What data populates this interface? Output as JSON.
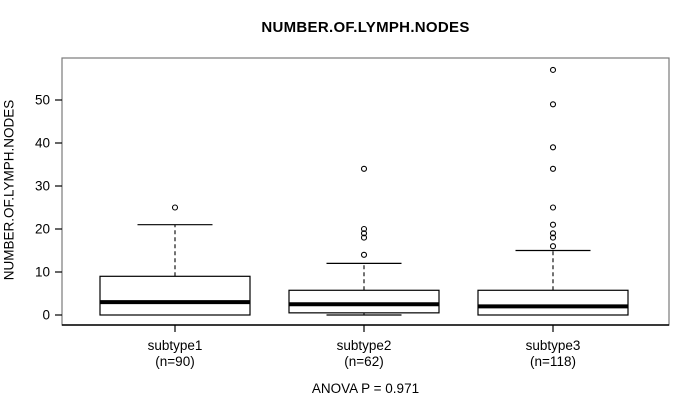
{
  "title": "NUMBER.OF.LYMPH.NODES",
  "footer": "ANOVA P = 0.971",
  "colors": {
    "background": "#ffffff",
    "plot_border": "#7a7a7a",
    "axis": "#000000",
    "box_stroke": "#000000",
    "box_fill": "#ffffff"
  },
  "chart_data": {
    "type": "boxplot",
    "title": "NUMBER.OF.LYMPH.NODES",
    "ylabel": "NUMBER.OF.LYMPH.NODES",
    "xlabel": "",
    "annotation": "ANOVA P = 0.971",
    "ylim": [
      -2.3,
      59.8
    ],
    "yticks": [
      0,
      10,
      20,
      30,
      40,
      50
    ],
    "grid": false,
    "legend": "none",
    "categories": [
      "subtype1",
      "subtype2",
      "subtype3"
    ],
    "sample_sizes": [
      90,
      62,
      118
    ],
    "series": [
      {
        "label": "subtype1",
        "count_label": "(n=90)",
        "n": 90,
        "whisker_low": 0,
        "q1": 0,
        "median": 3,
        "q3": 9,
        "whisker_high": 21,
        "outliers": [
          25
        ]
      },
      {
        "label": "subtype2",
        "count_label": "(n=62)",
        "n": 62,
        "whisker_low": 0,
        "q1": 0.5,
        "median": 2.5,
        "q3": 5.75,
        "whisker_high": 12,
        "outliers": [
          14,
          18,
          19,
          20,
          34
        ]
      },
      {
        "label": "subtype3",
        "count_label": "(n=118)",
        "n": 118,
        "whisker_low": 0,
        "q1": 0,
        "median": 2,
        "q3": 5.75,
        "whisker_high": 15,
        "outliers": [
          16,
          18,
          19,
          21,
          25,
          34,
          39,
          49,
          57
        ]
      }
    ]
  }
}
